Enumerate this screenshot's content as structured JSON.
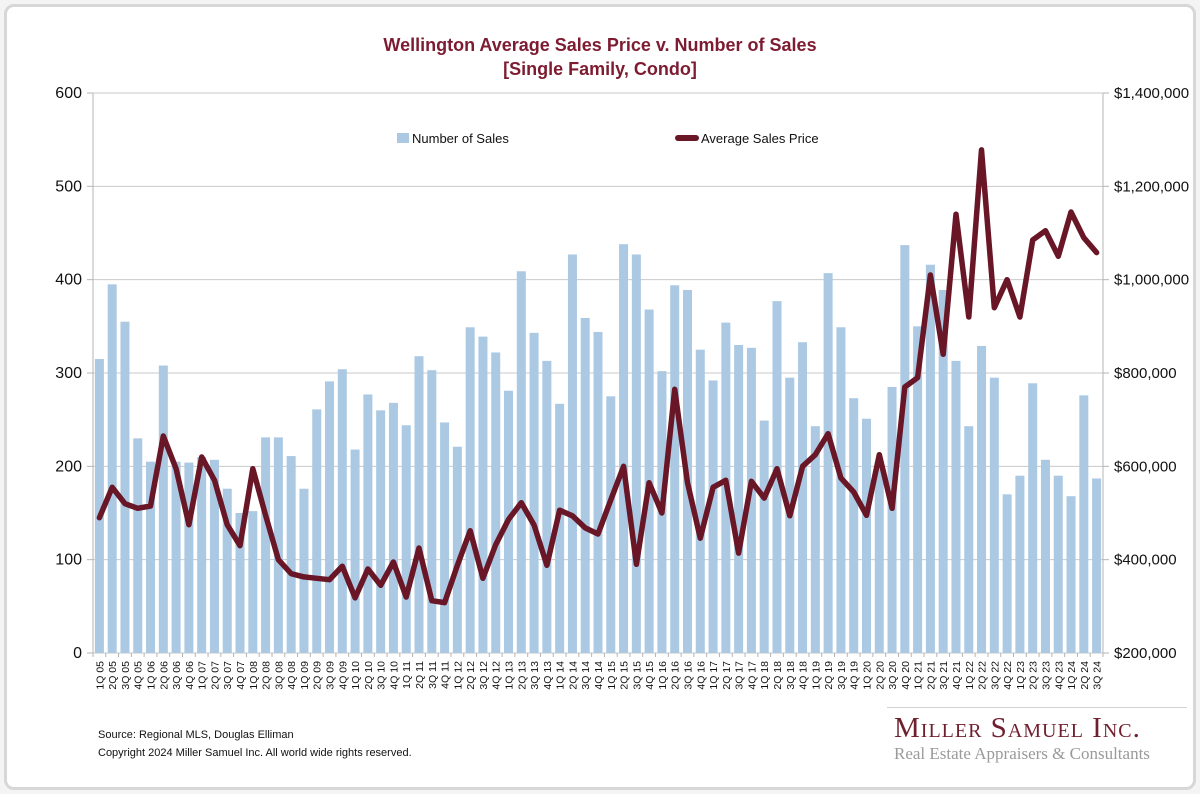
{
  "title": {
    "line1": "Wellington Average Sales Price v. Number of Sales",
    "line2": "[Single Family, Condo]"
  },
  "legend": {
    "bars_label": "Number of Sales",
    "line_label": "Average Sales Price"
  },
  "footer": {
    "source": "Source: Regional MLS, Douglas Elliman",
    "copyright": "Copyright 2024 Miller Samuel Inc.  All world wide rights reserved."
  },
  "logo": {
    "name": "Miller Samuel Inc.",
    "tagline": "Real Estate Appraisers & Consultants"
  },
  "colors": {
    "bar": "#abc9e2",
    "line": "#691627",
    "title": "#7d1b31",
    "grid": "#c9c9c9",
    "axis": "#b5b5b5",
    "tick_text": "#111111"
  },
  "chart_data": {
    "type": "bar+line",
    "title": "Wellington Average Sales Price v. Number of Sales [Single Family, Condo]",
    "categories": [
      "1Q 05",
      "2Q 05",
      "3Q 05",
      "4Q 05",
      "1Q 06",
      "2Q 06",
      "3Q 06",
      "4Q 06",
      "1Q 07",
      "2Q 07",
      "3Q 07",
      "4Q 07",
      "1Q 08",
      "2Q 08",
      "3Q 08",
      "4Q 08",
      "1Q 09",
      "2Q 09",
      "3Q 09",
      "4Q 09",
      "1Q 10",
      "2Q 10",
      "3Q 10",
      "4Q 10",
      "1Q 11",
      "2Q 11",
      "3Q 11",
      "4Q 11",
      "1Q 12",
      "2Q 12",
      "3Q 12",
      "4Q 12",
      "1Q 13",
      "2Q 13",
      "3Q 13",
      "4Q 13",
      "1Q 14",
      "2Q 14",
      "3Q 14",
      "4Q 14",
      "1Q 15",
      "2Q 15",
      "3Q 15",
      "4Q 15",
      "1Q 16",
      "2Q 16",
      "3Q 16",
      "4Q 16",
      "1Q 17",
      "2Q 17",
      "3Q 17",
      "4Q 17",
      "1Q 18",
      "2Q 18",
      "3Q 18",
      "4Q 18",
      "1Q 19",
      "2Q 19",
      "3Q 19",
      "4Q 19",
      "1Q 20",
      "2Q 20",
      "3Q 20",
      "4Q 20",
      "1Q 21",
      "2Q 21",
      "3Q 21",
      "4Q 21",
      "1Q 22",
      "2Q 22",
      "3Q 22",
      "4Q 22",
      "1Q 23",
      "2Q 23",
      "3Q 23",
      "4Q 23",
      "1Q 24",
      "2Q 24",
      "3Q 24"
    ],
    "series": [
      {
        "name": "Number of Sales",
        "type": "bar",
        "axis": "left",
        "values": [
          315,
          395,
          355,
          230,
          205,
          308,
          205,
          204,
          210,
          207,
          176,
          150,
          152,
          231,
          231,
          211,
          176,
          261,
          291,
          304,
          218,
          277,
          260,
          268,
          244,
          318,
          303,
          247,
          221,
          349,
          339,
          322,
          281,
          409,
          343,
          313,
          267,
          427,
          359,
          344,
          275,
          438,
          427,
          368,
          302,
          394,
          389,
          325,
          292,
          354,
          330,
          327,
          249,
          377,
          295,
          333,
          243,
          407,
          349,
          273,
          251,
          204,
          285,
          437,
          350,
          416,
          389,
          313,
          243,
          329,
          295,
          170,
          190,
          289,
          207,
          190,
          168,
          276,
          187
        ]
      },
      {
        "name": "Average Sales Price",
        "type": "line",
        "axis": "right",
        "values": [
          490000,
          555000,
          520000,
          510000,
          515000,
          665000,
          595000,
          475000,
          620000,
          570000,
          475000,
          430000,
          595000,
          495000,
          400000,
          370000,
          363000,
          360000,
          357000,
          386000,
          318000,
          380000,
          345000,
          395000,
          320000,
          425000,
          312000,
          308000,
          388000,
          462000,
          360000,
          432000,
          486000,
          522000,
          474000,
          388000,
          506000,
          494000,
          468000,
          455000,
          528000,
          600000,
          390000,
          565000,
          500000,
          765000,
          565000,
          446000,
          555000,
          570000,
          414000,
          568000,
          532000,
          595000,
          494000,
          600000,
          625000,
          670000,
          575000,
          545000,
          495000,
          625000,
          510000,
          770000,
          790000,
          1010000,
          840000,
          1140000,
          920000,
          1278000,
          940000,
          1000000,
          920000,
          1085000,
          1105000,
          1050000,
          1145000,
          1090000,
          1058000
        ]
      }
    ],
    "left_axis": {
      "min": 0,
      "max": 600,
      "step": 100,
      "ticks": [
        "0",
        "100",
        "200",
        "300",
        "400",
        "500",
        "600"
      ]
    },
    "right_axis": {
      "min": 200000,
      "max": 1400000,
      "step": 200000,
      "ticks": [
        "$200,000",
        "$400,000",
        "$600,000",
        "$800,000",
        "$1,000,000",
        "$1,200,000",
        "$1,400,000"
      ]
    },
    "grid": "horizontal",
    "legend_position": "top-inside"
  }
}
